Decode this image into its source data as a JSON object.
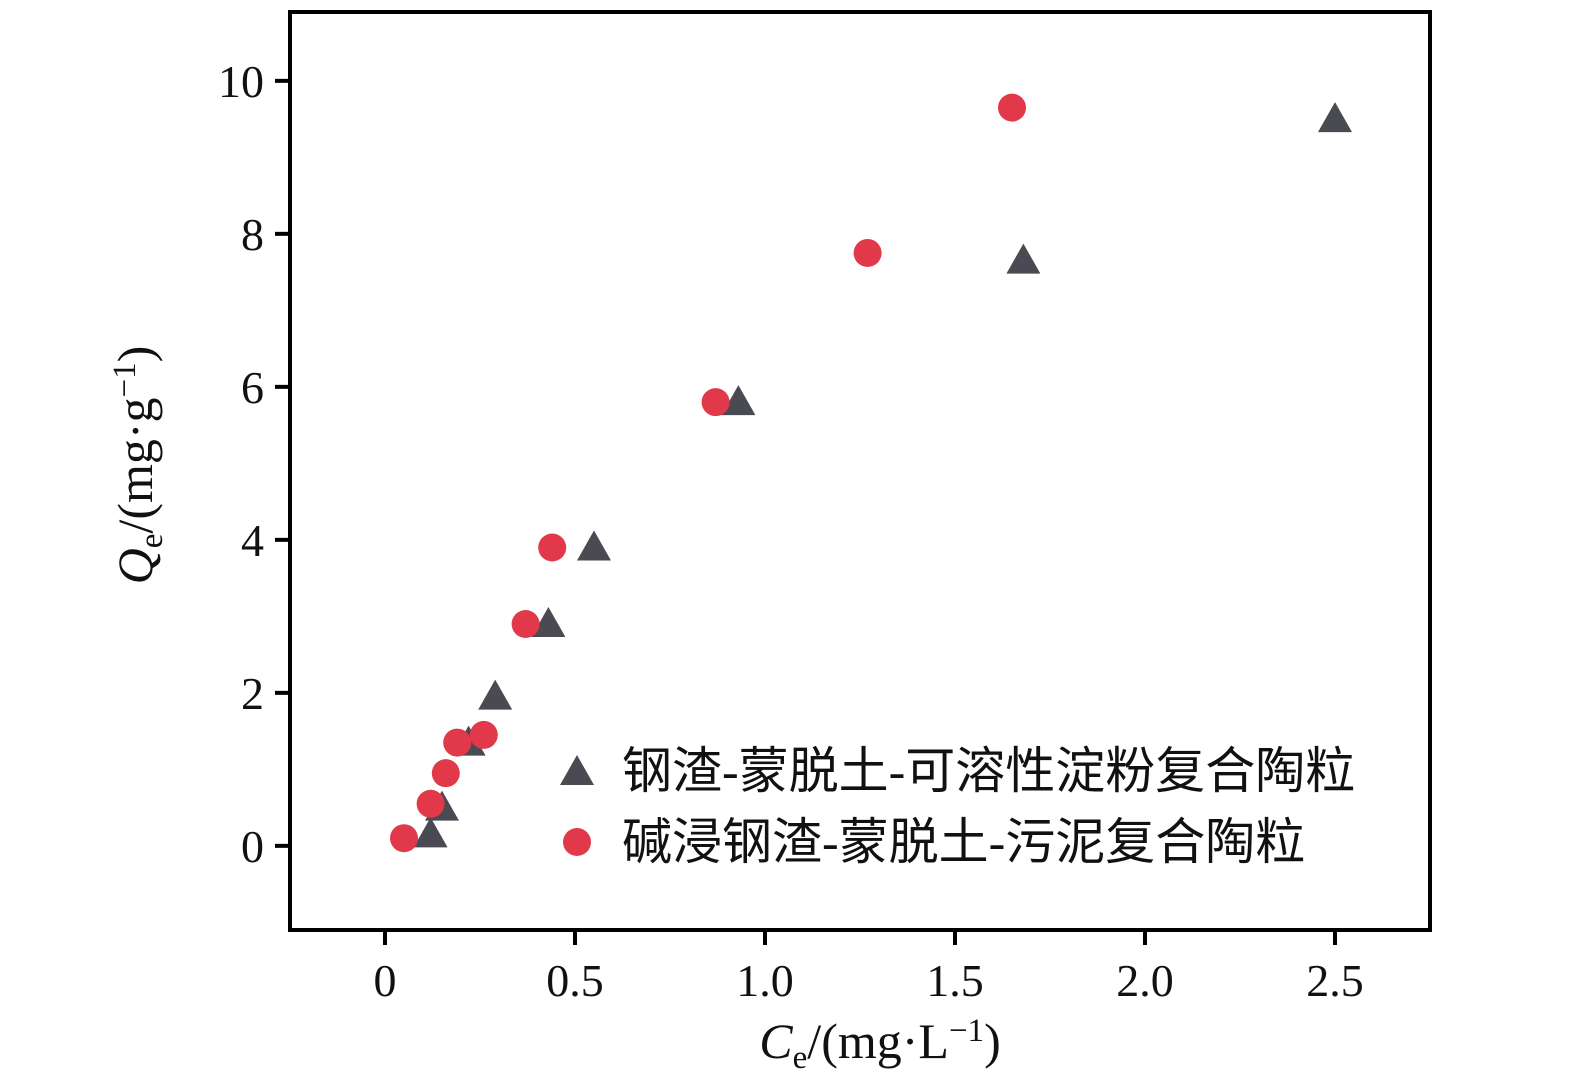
{
  "chart_data": {
    "type": "scatter",
    "title": "",
    "grid": false,
    "legend_position": "inside-bottom-right",
    "xlabel": {
      "variable": "C",
      "subscript": "e",
      "prefix": "/(mg·L",
      "superscript": "−1",
      "suffix": ")"
    },
    "ylabel": {
      "variable": "Q",
      "subscript": "e",
      "prefix": "/(mg·g",
      "superscript": "−1",
      "suffix": ")"
    },
    "xlim": [
      -0.25,
      2.75
    ],
    "ylim": [
      -1.1,
      10.9
    ],
    "xticks": [
      0,
      0.5,
      1.0,
      1.5,
      2.0,
      2.5
    ],
    "xtick_labels": [
      "0",
      "0.5",
      "1.0",
      "1.5",
      "2.0",
      "2.5"
    ],
    "yticks": [
      0,
      2,
      4,
      6,
      8,
      10
    ],
    "ytick_labels": [
      "0",
      "2",
      "4",
      "6",
      "8",
      "10"
    ],
    "axis_color": "#000000",
    "series": [
      {
        "name": "钢渣-蒙脱土-可溶性淀粉复合陶粒",
        "marker": "triangle",
        "color": "#4a4a52",
        "points": [
          [
            0.12,
            0.15
          ],
          [
            0.15,
            0.5
          ],
          [
            0.22,
            1.35
          ],
          [
            0.29,
            1.95
          ],
          [
            0.43,
            2.9
          ],
          [
            0.55,
            3.9
          ],
          [
            0.93,
            5.8
          ],
          [
            1.68,
            7.65
          ],
          [
            2.5,
            9.5
          ]
        ]
      },
      {
        "name": "碱浸钢渣-蒙脱土-污泥复合陶粒",
        "marker": "circle",
        "color": "#e2394a",
        "points": [
          [
            0.05,
            0.1
          ],
          [
            0.12,
            0.55
          ],
          [
            0.16,
            0.95
          ],
          [
            0.19,
            1.35
          ],
          [
            0.26,
            1.45
          ],
          [
            0.37,
            2.9
          ],
          [
            0.44,
            3.9
          ],
          [
            0.87,
            5.8
          ],
          [
            1.27,
            7.75
          ],
          [
            1.65,
            9.65
          ]
        ]
      }
    ]
  }
}
